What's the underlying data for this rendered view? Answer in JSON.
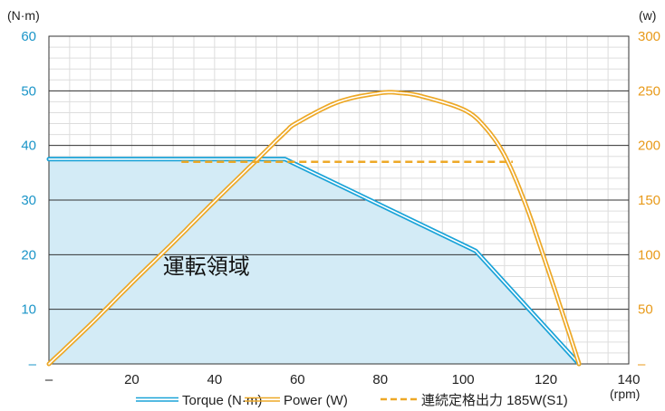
{
  "chart_data": {
    "type": "line",
    "title": "",
    "x": {
      "label": "(rpm)",
      "min": 0,
      "max": 140,
      "tick_values": [
        0,
        20,
        40,
        60,
        80,
        100,
        120,
        140
      ],
      "tick_labels": [
        "–",
        "20",
        "40",
        "60",
        "80",
        "100",
        "120",
        "140"
      ]
    },
    "y_left": {
      "label": "(N·m)",
      "min": 0,
      "max": 60,
      "tick_values": [
        0,
        10,
        20,
        30,
        40,
        50,
        60
      ],
      "tick_labels": [
        "–",
        "10",
        "20",
        "30",
        "40",
        "50",
        "60"
      ]
    },
    "y_right": {
      "label": "(w)",
      "min": 0,
      "max": 300,
      "tick_values": [
        0,
        50,
        100,
        150,
        200,
        250,
        300
      ],
      "tick_labels": [
        "–",
        "50",
        "100",
        "150",
        "200",
        "250",
        "300"
      ]
    },
    "series": [
      {
        "name": "Torque (N·m)",
        "axis": "left",
        "style": "double-line",
        "fill": true,
        "points": [
          [
            0,
            37.5
          ],
          [
            57,
            37.5
          ],
          [
            103,
            20.7
          ],
          [
            128,
            0
          ]
        ]
      },
      {
        "name": "Power (W)",
        "axis": "right",
        "style": "double-line",
        "points": [
          [
            0,
            0
          ],
          [
            10,
            36
          ],
          [
            20,
            74
          ],
          [
            30,
            111
          ],
          [
            40,
            149
          ],
          [
            50,
            186
          ],
          [
            57,
            212
          ],
          [
            60,
            221
          ],
          [
            70,
            240
          ],
          [
            80,
            248
          ],
          [
            85,
            248
          ],
          [
            90,
            245
          ],
          [
            100,
            233
          ],
          [
            105,
            218
          ],
          [
            110,
            191
          ],
          [
            115,
            147
          ],
          [
            120,
            92
          ],
          [
            125,
            35
          ],
          [
            128,
            0
          ]
        ]
      },
      {
        "name": "連続定格出力 185W(S1)",
        "axis": "right",
        "style": "dashed",
        "points": [
          [
            32,
            185
          ],
          [
            112,
            185
          ]
        ]
      }
    ],
    "annotations": [
      {
        "text": "運転領域",
        "x": 38,
        "y": 16.5
      }
    ],
    "grid": {
      "minor": true,
      "major_horizontal_lines": true
    },
    "legend_position": "bottom",
    "colors": {
      "torque": "#1aa3d8",
      "torque_fill": "#d3ebf6",
      "power": "#eda826",
      "left_axis_text": "#1b95c8",
      "right_axis_text": "#e89a1a",
      "minor_grid": "#dddddd",
      "major_grid": "#333333"
    }
  }
}
